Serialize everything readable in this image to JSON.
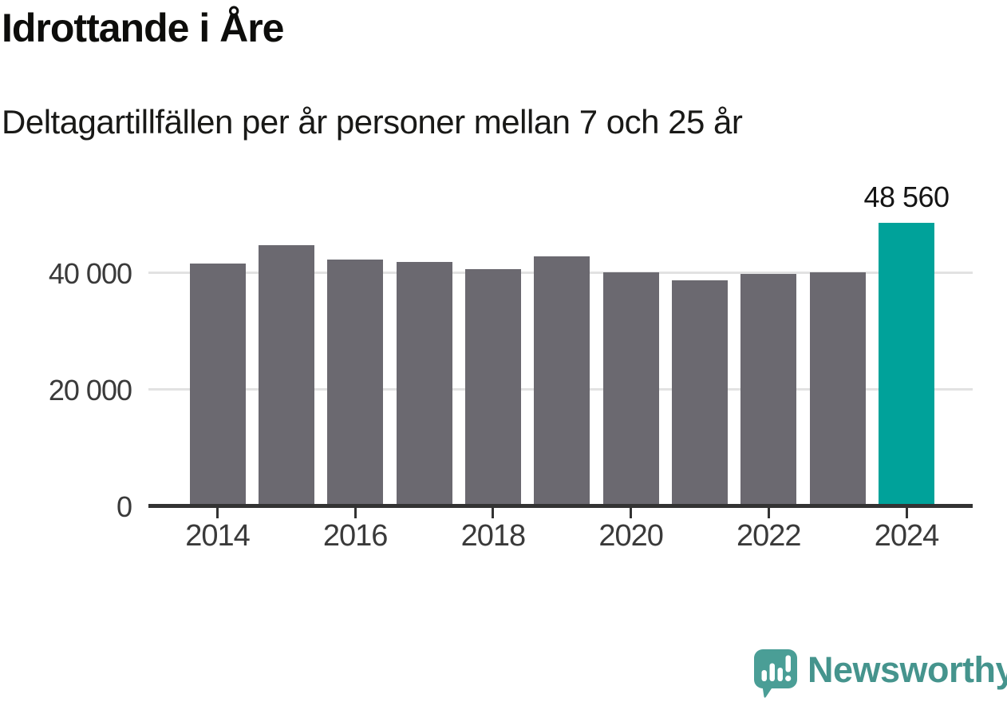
{
  "title": "Idrottande i Åre",
  "subtitle": "Deltagartillfällen per år personer mellan 7 och 25 år",
  "chart_data": {
    "type": "bar",
    "categories": [
      2014,
      2015,
      2016,
      2017,
      2018,
      2019,
      2020,
      2021,
      2022,
      2023,
      2024
    ],
    "values": [
      41500,
      44600,
      42200,
      41800,
      40600,
      42700,
      40000,
      38600,
      39700,
      40000,
      48560
    ],
    "title": "Idrottande i Åre",
    "subtitle": "Deltagartillfällen per år personer mellan 7 och 25 år",
    "xlabel": "",
    "ylabel": "",
    "ylim": [
      0,
      50000
    ],
    "grid": "horizontal-only",
    "legend": "none",
    "bar_color": "#6B6970",
    "gridline_color": "#E2E2E2",
    "axis_color": "#333333",
    "tick_label_color": "#3a3a3a",
    "annotation_color": "#141414",
    "yticks": [
      {
        "value": 0,
        "label": "0"
      },
      {
        "value": 20000,
        "label": "20 000"
      },
      {
        "value": 40000,
        "label": "40 000"
      }
    ],
    "xticks": [
      {
        "value": 2014,
        "label": "2014"
      },
      {
        "value": 2016,
        "label": "2016"
      },
      {
        "value": 2018,
        "label": "2018"
      },
      {
        "value": 2020,
        "label": "2020"
      },
      {
        "value": 2022,
        "label": "2022"
      },
      {
        "value": 2024,
        "label": "2024"
      }
    ],
    "highlight": {
      "category": 2024,
      "value": 48560,
      "label": "48 560",
      "color": "#00A29A"
    }
  },
  "branding": {
    "name": "Newsworthy",
    "color": "#45948D",
    "icon": "newsworthy-speech-bubble-bar-chart-icon"
  }
}
